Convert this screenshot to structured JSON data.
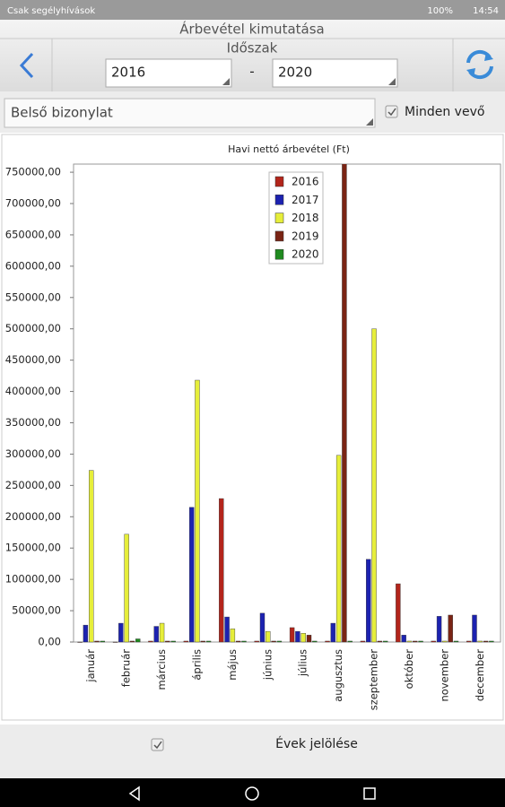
{
  "status_bar": {
    "carrier": "Csak segélyhívások",
    "battery": "100%",
    "time": "14:54"
  },
  "header": {
    "title": "Árbevétel kimutatása",
    "period_label": "Időszak",
    "from": "2016",
    "separator": "-",
    "to": "2020"
  },
  "filters": {
    "document_type": "Belső bizonylat",
    "all_customers": "Minden vevő"
  },
  "footer": {
    "mark_years": "Évek jelölése"
  },
  "chart_data": {
    "type": "bar",
    "title": "Havi nettó árbevétel (Ft)",
    "categories": [
      "január",
      "február",
      "március",
      "április",
      "május",
      "június",
      "július",
      "augusztus",
      "szeptember",
      "október",
      "november",
      "december"
    ],
    "series": [
      {
        "name": "2016",
        "color": "#b3251b",
        "values": [
          0,
          0,
          1500,
          1500,
          229000,
          1500,
          23000,
          1500,
          1500,
          93000,
          1500,
          1500
        ]
      },
      {
        "name": "2017",
        "color": "#1c22b0",
        "values": [
          27000,
          30000,
          25000,
          215000,
          40000,
          46000,
          17000,
          30000,
          132000,
          11000,
          41000,
          43000
        ]
      },
      {
        "name": "2018",
        "color": "#e6ee3a",
        "values": [
          274000,
          172000,
          30000,
          418000,
          21000,
          17000,
          14000,
          298000,
          500000,
          1500,
          1500,
          1500
        ]
      },
      {
        "name": "2019",
        "color": "#7a2414",
        "values": [
          1500,
          1500,
          1500,
          1500,
          1500,
          1500,
          11000,
          780000,
          1500,
          1500,
          43000,
          1500
        ]
      },
      {
        "name": "2020",
        "color": "#1f8a1f",
        "values": [
          1500,
          5000,
          1500,
          1500,
          1500,
          1500,
          1500,
          1500,
          1500,
          1500,
          1500,
          1500
        ]
      }
    ],
    "ylim": [
      0,
      763000
    ],
    "yticks": [
      {
        "value": 0,
        "label": "0,00"
      },
      {
        "value": 50000,
        "label": "50000,00"
      },
      {
        "value": 100000,
        "label": "100000,00"
      },
      {
        "value": 150000,
        "label": "150000,00"
      },
      {
        "value": 200000,
        "label": "200000,00"
      },
      {
        "value": 250000,
        "label": "250000,00"
      },
      {
        "value": 300000,
        "label": "300000,00"
      },
      {
        "value": 350000,
        "label": "350000,00"
      },
      {
        "value": 400000,
        "label": "400000,00"
      },
      {
        "value": 450000,
        "label": "450000,00"
      },
      {
        "value": 500000,
        "label": "500000,00"
      },
      {
        "value": 550000,
        "label": "550000,00"
      },
      {
        "value": 600000,
        "label": "600000,00"
      },
      {
        "value": 650000,
        "label": "650000,00"
      },
      {
        "value": 700000,
        "label": "700000,00"
      },
      {
        "value": 750000,
        "label": "750000,00"
      }
    ],
    "grid": false,
    "legend": "top"
  }
}
